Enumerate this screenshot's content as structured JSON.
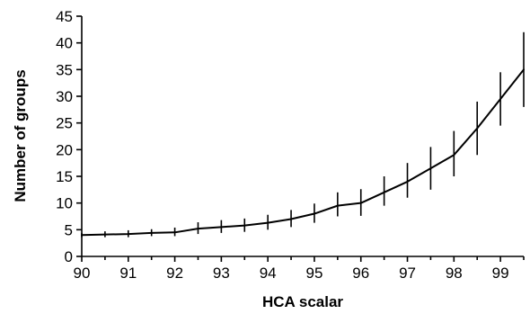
{
  "chart_data": {
    "type": "line",
    "title": "",
    "xlabel": "HCA scalar",
    "ylabel": "Number of groups",
    "xlim": [
      90,
      99.5
    ],
    "ylim": [
      0,
      45
    ],
    "x_ticks": [
      90,
      91,
      92,
      93,
      94,
      95,
      96,
      97,
      98,
      99
    ],
    "y_ticks": [
      0,
      5,
      10,
      15,
      20,
      25,
      30,
      35,
      40,
      45
    ],
    "grid": false,
    "legend": "none",
    "series": [
      {
        "x": [
          90,
          90.5,
          91,
          91.5,
          92,
          92.5,
          93,
          93.5,
          94,
          94.5,
          95,
          95.5,
          96,
          96.5,
          97,
          97.5,
          98,
          98.5,
          99,
          99.5
        ],
        "y": [
          4,
          4.1,
          4.2,
          4.4,
          4.5,
          5.2,
          5.5,
          5.8,
          6.3,
          7,
          8,
          9.5,
          10,
          12,
          14,
          16.5,
          19,
          24,
          29.5,
          35
        ],
        "err_low": [
          3.6,
          3.6,
          3.6,
          3.8,
          3.8,
          4.2,
          4.4,
          4.6,
          5,
          5.5,
          6.3,
          7.5,
          7.6,
          9.5,
          11,
          12.5,
          15,
          19,
          24.5,
          28
        ],
        "err_high": [
          4.4,
          4.7,
          4.9,
          5.1,
          5.4,
          6.4,
          6.8,
          7.1,
          7.8,
          8.7,
          9.9,
          12,
          12.6,
          15,
          17.5,
          20.5,
          23.5,
          29,
          34.5,
          42
        ]
      }
    ]
  }
}
